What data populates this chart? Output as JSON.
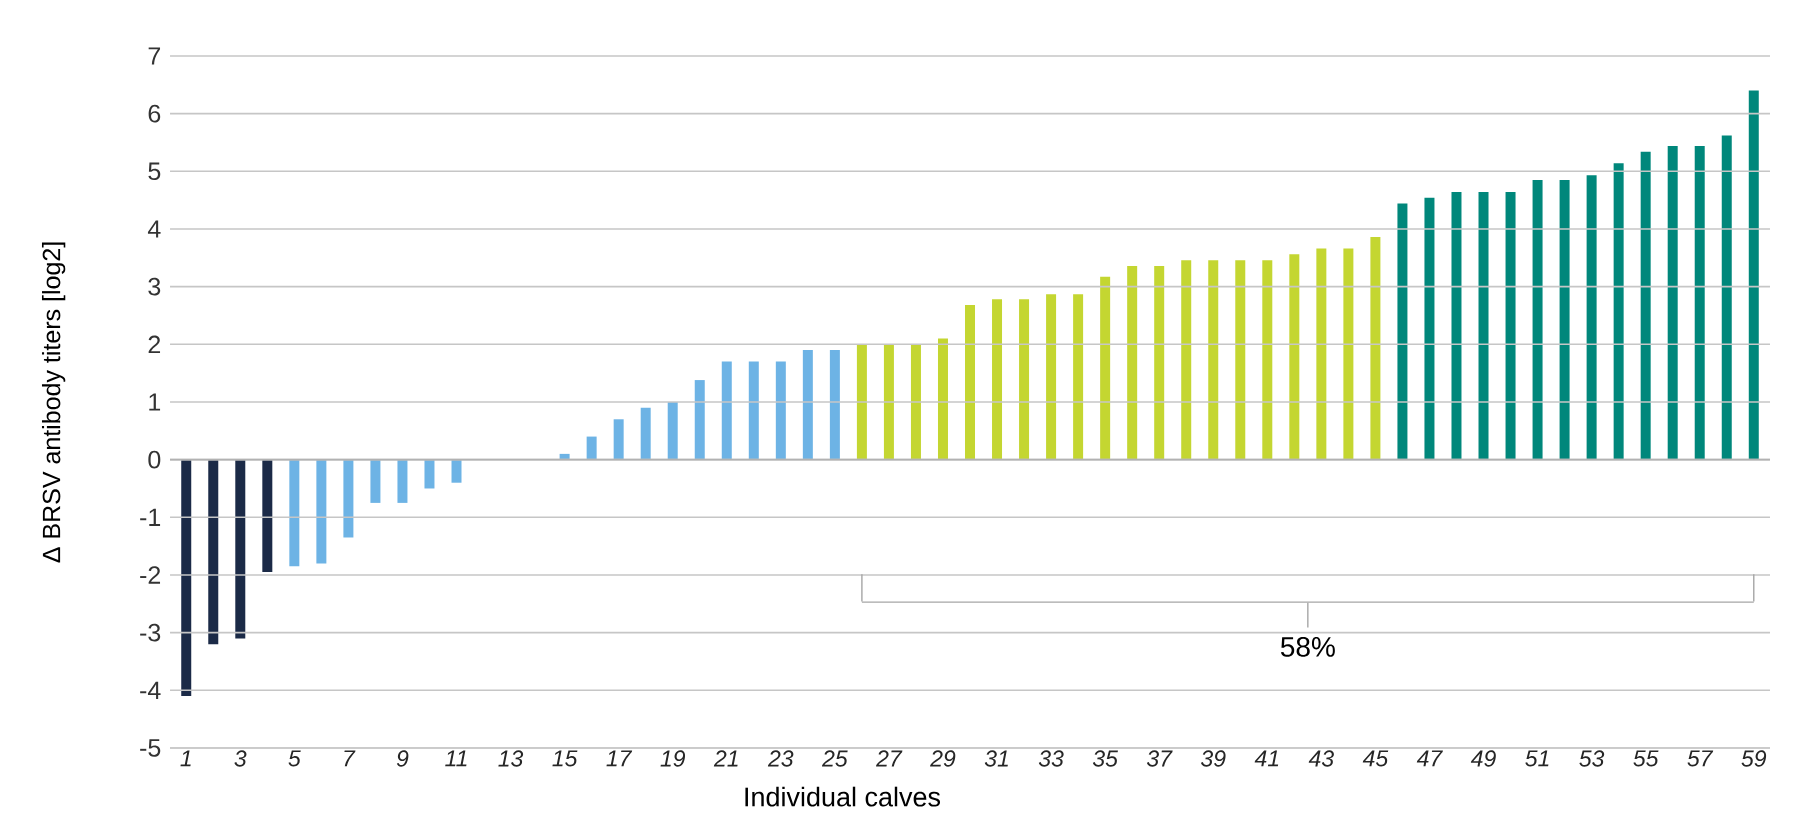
{
  "chart_data": {
    "type": "bar",
    "ylabel": "Δ BRSV antibody titers [log2]",
    "xlabel": "Individual calves",
    "categories": [
      "1",
      null,
      "3",
      null,
      "5",
      null,
      "7",
      null,
      "9",
      null,
      "11",
      null,
      "13",
      null,
      "15",
      null,
      "17",
      null,
      "19",
      null,
      "21",
      null,
      "23",
      null,
      "25",
      null,
      "27",
      null,
      "29",
      null,
      "31",
      null,
      "33",
      null,
      "35",
      null,
      "37",
      null,
      "39",
      null,
      "41",
      null,
      "43",
      null,
      "45",
      null,
      "47",
      null,
      "49",
      null,
      "51",
      null,
      "53",
      null,
      "55",
      null,
      "57",
      null,
      "59"
    ],
    "series": [
      {
        "values": [
          -4.1,
          -3.2,
          -3.1,
          -1.95,
          -1.85,
          -1.8,
          -1.35,
          -0.75,
          -0.75,
          -0.5,
          -0.4,
          0,
          0,
          0,
          0.1,
          0.4,
          0.7,
          0.9,
          1.0,
          1.38,
          1.7,
          1.7,
          1.7,
          1.9,
          1.9,
          2.0,
          2.0,
          2.0,
          2.1,
          2.68,
          2.78,
          2.78,
          2.87,
          2.87,
          3.17,
          3.36,
          3.36,
          3.46,
          3.46,
          3.46,
          3.46,
          3.56,
          3.66,
          3.66,
          3.86,
          4.44,
          4.54,
          4.64,
          4.64,
          4.64,
          4.85,
          4.85,
          4.93,
          5.14,
          5.34,
          5.44,
          5.44,
          5.62,
          6.4
        ],
        "colors": [
          "#1b2a47",
          "#1b2a47",
          "#1b2a47",
          "#1b2a47",
          "#6db3e5",
          "#6db3e5",
          "#6db3e5",
          "#6db3e5",
          "#6db3e5",
          "#6db3e5",
          "#6db3e5",
          "#6db3e5",
          "#6db3e5",
          "#6db3e5",
          "#6db3e5",
          "#6db3e5",
          "#6db3e5",
          "#6db3e5",
          "#6db3e5",
          "#6db3e5",
          "#6db3e5",
          "#6db3e5",
          "#6db3e5",
          "#6db3e5",
          "#6db3e5",
          "#c4d631",
          "#c4d631",
          "#c4d631",
          "#c4d631",
          "#c4d631",
          "#c4d631",
          "#c4d631",
          "#c4d631",
          "#c4d631",
          "#c4d631",
          "#c4d631",
          "#c4d631",
          "#c4d631",
          "#c4d631",
          "#c4d631",
          "#c4d631",
          "#c4d631",
          "#c4d631",
          "#c4d631",
          "#c4d631",
          "#00877b",
          "#00877b",
          "#00877b",
          "#00877b",
          "#00877b",
          "#00877b",
          "#00877b",
          "#00877b",
          "#00877b",
          "#00877b",
          "#00877b",
          "#00877b",
          "#00877b",
          "#00877b"
        ]
      },
      {
        "type": "line",
        "color": "#a6a6a6",
        "values": [
          null,
          null,
          null,
          null,
          null,
          null,
          null,
          null,
          null,
          null,
          null,
          null,
          null,
          null,
          null,
          null,
          null,
          null,
          null,
          null,
          null,
          null,
          null,
          null,
          null,
          -2.47,
          -2.47,
          -2.47,
          -2.47,
          -2.47,
          -2.47,
          -2.47,
          -2.47,
          -2.47,
          -2.47,
          -2.47,
          -2.47,
          -2.47,
          -2.47,
          -2.47,
          -2.47,
          -2.47,
          -2.47,
          -2.47,
          -2.47,
          -2.47,
          -2.47,
          -2.47,
          -2.47,
          -2.47,
          -2.47,
          -2.47,
          -2.47,
          -2.47,
          -2.47,
          -2.47,
          -2.47,
          -2.47,
          -2.47
        ]
      }
    ],
    "ylim": [
      -5,
      7
    ],
    "yticks": [
      -5,
      -4,
      -3,
      -2,
      -1,
      0,
      1,
      2,
      3,
      4,
      5,
      6,
      7
    ],
    "grid": "y",
    "annotations": [
      "58%"
    ]
  }
}
